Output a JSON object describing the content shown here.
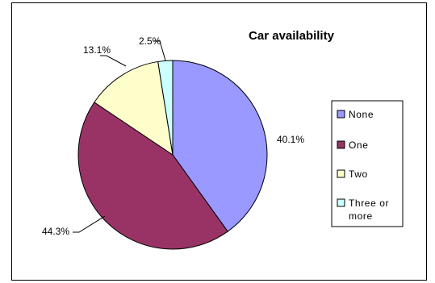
{
  "chart_data": {
    "type": "pie",
    "title": "Car availability",
    "categories": [
      "None",
      "One",
      "Two",
      "Three or more"
    ],
    "values": [
      40.1,
      44.3,
      13.1,
      2.5
    ],
    "value_labels": [
      "40.1%",
      "44.3%",
      "13.1%",
      "2.5%"
    ],
    "legend": {
      "placement": "right",
      "entries": [
        "None",
        "One",
        "Two",
        "Three or more"
      ]
    },
    "colors": [
      "#9999ff",
      "#993366",
      "#ffffcc",
      "#ccffff"
    ]
  }
}
